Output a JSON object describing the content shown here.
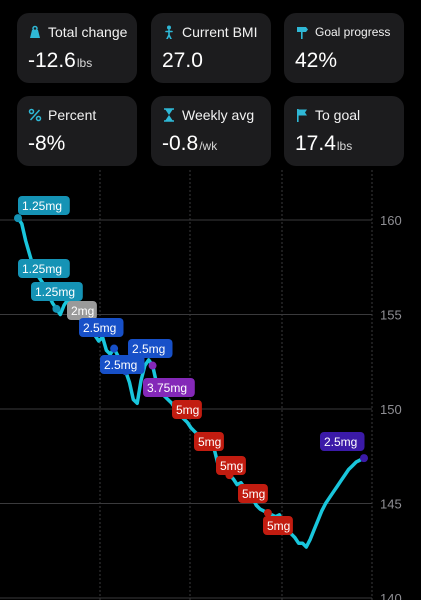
{
  "cards": [
    {
      "icon": "scale-icon",
      "label": "Total change",
      "value": "-12.6",
      "unit": "lbs"
    },
    {
      "icon": "person-icon",
      "label": "Current BMI",
      "value": "27.0",
      "unit": ""
    },
    {
      "icon": "signpost-icon",
      "label": "Goal progress",
      "value": "42%",
      "unit": ""
    },
    {
      "icon": "percent-icon",
      "label": "Percent",
      "value": "-8%",
      "unit": ""
    },
    {
      "icon": "hourglass-icon",
      "label": "Weekly avg",
      "value": "-0.8",
      "unit": "/wk"
    },
    {
      "icon": "flag-icon",
      "label": "To goal",
      "value": "17.4",
      "unit": "lbs"
    }
  ],
  "colors": {
    "line": "#19c6dc",
    "accent": "#2fb8d6",
    "dose_1_25": "#1593b5",
    "dose_2": "#9a9a9a",
    "dose_2_5": "#1750c8",
    "dose_3_75": "#8428b8",
    "dose_5": "#c21c10",
    "dose_latest": "#3b1aa8"
  },
  "chart_data": {
    "type": "line",
    "yticks": [
      160,
      155,
      150,
      145,
      140
    ],
    "ylim": [
      140,
      162
    ],
    "x": [
      0,
      1,
      2,
      3,
      4,
      5,
      6,
      7,
      8,
      9,
      10,
      11,
      12,
      13,
      14,
      15,
      16,
      17,
      18,
      19,
      20,
      21,
      22,
      23,
      24,
      25,
      26,
      27,
      28,
      29,
      30,
      31,
      32,
      33,
      34,
      35,
      36,
      37,
      38,
      39,
      40,
      41,
      42,
      43,
      44,
      45,
      46,
      47,
      48,
      49,
      50,
      51,
      52,
      53,
      54,
      55,
      56,
      57,
      58,
      59,
      60,
      61,
      62,
      63,
      64,
      65,
      66,
      67,
      68,
      69,
      70,
      71,
      72,
      73,
      74,
      75,
      76,
      77,
      78,
      79,
      80,
      81,
      82,
      83,
      84,
      85,
      86,
      87,
      88,
      89,
      90
    ],
    "series": [
      {
        "values": [
          160.1,
          159.8,
          158.9,
          158.2,
          157.5,
          157.1,
          156.8,
          156.5,
          156.0,
          155.6,
          155.3,
          155.0,
          155.5,
          155.8,
          155.4,
          155.0,
          154.8,
          154.6,
          154.3,
          154.1,
          153.9,
          153.6,
          153.8,
          153.1,
          152.9,
          153.2,
          152.8,
          152.5,
          152.0,
          151.4,
          150.5,
          150.3,
          151.5,
          152.3,
          152.6,
          152.3,
          151.4,
          151.0,
          150.7,
          150.5,
          150.3,
          150.0,
          149.7,
          149.5,
          149.3,
          149.0,
          148.8,
          148.6,
          148.3,
          148.1,
          148.0,
          147.9,
          147.1,
          147.3,
          147.0,
          146.5,
          146.3,
          146.0,
          146.1,
          145.8,
          145.5,
          145.3,
          144.9,
          144.7,
          144.6,
          144.5,
          144.4,
          144.3,
          144.4,
          143.7,
          143.5,
          143.4,
          143.2,
          142.9,
          142.9,
          142.7,
          143.1,
          143.6,
          144.1,
          144.6,
          145.0,
          145.3,
          145.6,
          145.9,
          146.2,
          146.5,
          146.8,
          147.0,
          147.2,
          147.3,
          147.4
        ]
      }
    ],
    "dose_labels": [
      {
        "text": "1.25mg",
        "color_key": "dose_1_25",
        "y": 160.1
      },
      {
        "text": "1.25mg",
        "color_key": "dose_1_25",
        "y": 157.6
      },
      {
        "text": "1.25mg",
        "color_key": "dose_1_25",
        "y": 156.2
      },
      {
        "text": "2mg",
        "color_key": "dose_2",
        "y": 155.5
      },
      {
        "text": "2.5mg",
        "color_key": "dose_2_5",
        "y": 155.0
      },
      {
        "text": "2.5mg",
        "color_key": "dose_2_5",
        "y": 153.5
      },
      {
        "text": "2.5mg",
        "color_key": "dose_2_5",
        "y": 152.0
      },
      {
        "text": "3.75mg",
        "color_key": "dose_3_75",
        "y": 150.3
      },
      {
        "text": "5mg",
        "color_key": "dose_5",
        "y": 149.3
      },
      {
        "text": "5mg",
        "color_key": "dose_5",
        "y": 148.0
      },
      {
        "text": "5mg",
        "color_key": "dose_5",
        "y": 146.9
      },
      {
        "text": "5mg",
        "color_key": "dose_5",
        "y": 145.6
      },
      {
        "text": "5mg",
        "color_key": "dose_5",
        "y": 144.0
      },
      {
        "text": "2.5mg",
        "color_key": "dose_latest",
        "y": 147.4
      }
    ],
    "grid": true
  }
}
